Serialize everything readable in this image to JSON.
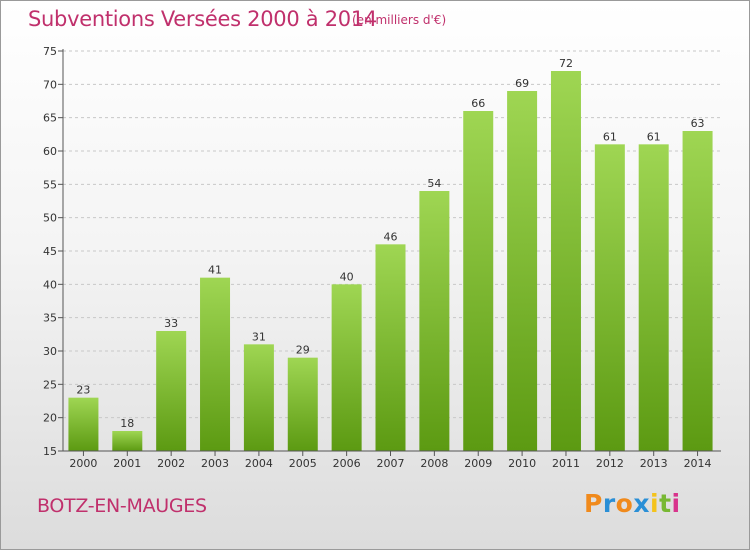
{
  "header": {
    "title": "Subventions Versées 2000 à 2014",
    "unit": "(en milliers d'€)"
  },
  "footer": {
    "commune": "BOTZ-EN-MAUGES",
    "logo_letters": [
      "P",
      "r",
      "o",
      "x",
      "i",
      "t",
      "i"
    ],
    "logo_colors": [
      "#f08a1c",
      "#2a8fd6",
      "#f08a1c",
      "#2a8fd6",
      "#f4c31c",
      "#78b833",
      "#d8348c"
    ]
  },
  "colors": {
    "bar_top": "#9fd653",
    "bar_bottom": "#5c9a12",
    "accent": "#c0306c"
  },
  "chart_data": {
    "type": "bar",
    "title": "Subventions Versées 2000 à 2014",
    "subtitle": "(en milliers d'€)",
    "xlabel": "",
    "ylabel": "",
    "categories": [
      "2000",
      "2001",
      "2002",
      "2003",
      "2004",
      "2005",
      "2006",
      "2007",
      "2008",
      "2009",
      "2010",
      "2011",
      "2012",
      "2013",
      "2014"
    ],
    "values": [
      23,
      18,
      33,
      41,
      31,
      29,
      40,
      46,
      54,
      66,
      69,
      72,
      61,
      61,
      63
    ],
    "ylim": [
      15,
      75
    ],
    "yticks": [
      15,
      20,
      25,
      30,
      35,
      40,
      45,
      50,
      55,
      60,
      65,
      70,
      75
    ],
    "grid": true
  }
}
